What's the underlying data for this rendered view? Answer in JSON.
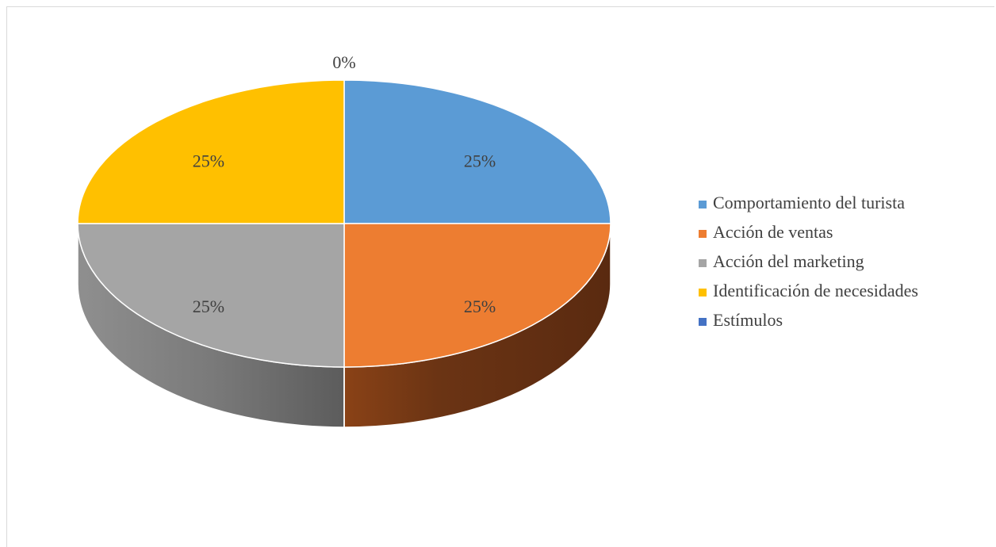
{
  "chart_data": {
    "type": "pie",
    "style": "3d",
    "title": "",
    "legend_position": "right",
    "series": [
      {
        "categories": [
          "Comportamiento del turista",
          "Acción de ventas",
          "Acción del marketing",
          "Identificación de necesidades",
          "Estímulos"
        ],
        "values": [
          25,
          25,
          25,
          25,
          0
        ],
        "labels": [
          "25%",
          "25%",
          "25%",
          "25%",
          "0%"
        ],
        "colors": [
          "#5b9bd5",
          "#ed7d31",
          "#a5a5a5",
          "#ffc000",
          "#4472c4"
        ]
      }
    ]
  }
}
